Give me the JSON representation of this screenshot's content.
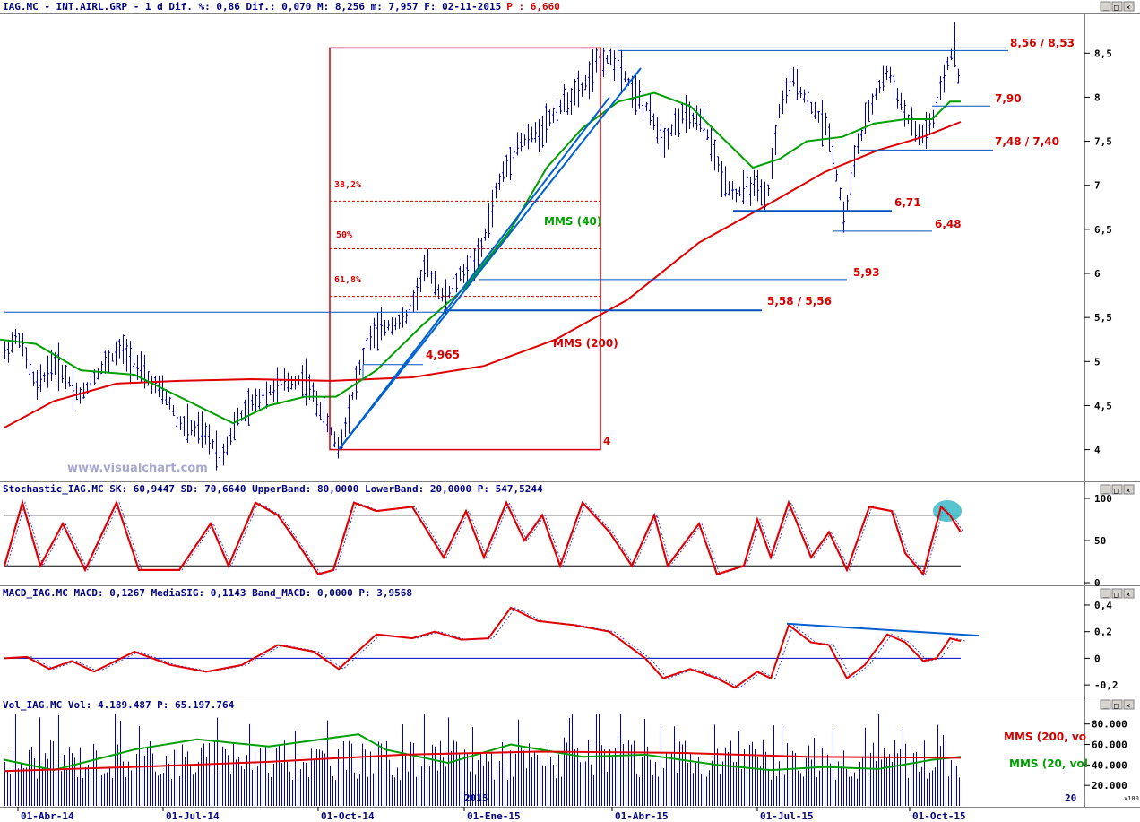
{
  "headers": {
    "price": "IAG.MC - INT.AIRL.GRP -  1 d Dif. %: 0,86 Dif.: 0,070 M: 8,256 m: 7,957 F: 02-11-2015",
    "price_p": "P : 6,660",
    "stoch": "Stochastic_IAG.MC SK: 60,9447 SD: 70,6640 UpperBand: 80,0000 LowerBand: 20,0000 P: 547,5244",
    "macd": "MACD_IAG.MC MACD: 0,1267 MediaSIG: 0,1143 Band_MACD: 0,0000 P: 3,9568",
    "vol": "Vol_IAG.MC Vol: 4.189.487 P: 65.197.764"
  },
  "watermark": "www.visualchart.com",
  "vol_year_label": "2015",
  "vol_scale_label": "x100",
  "corner_label": "20",
  "colors": {
    "bars": "#0000c0",
    "mms40": "#00a000",
    "mms200": "#e00000",
    "levels": "#0050c0",
    "stoch_sk": "#e00000",
    "macd_line": "#e00000",
    "trend": "#0060d0",
    "highlight": "#20b0c0"
  },
  "annotations": {
    "lvl_856": "8,56 / 8,53",
    "lvl_790": "7,90",
    "lvl_748": "7,48 / 7,40",
    "lvl_671": "6,71",
    "lvl_648": "6,48",
    "lvl_593": "5,93",
    "lvl_558": "5,58 / 5,56",
    "lvl_4965": "4,965",
    "lvl_4": "4",
    "fib_382": "38,2%",
    "fib_50": "50%",
    "fib_618": "61,8%",
    "mms40": "MMS (40)",
    "mms200": "MMS (200)",
    "vol_mms200": "MMS (200, vo",
    "vol_mms20": "MMS (20, vol"
  },
  "chart_data": [
    {
      "type": "line",
      "panel": "price",
      "x_ticks": [
        "01-Abr-14",
        "01-Jul-14",
        "01-Oct-14",
        "01-Ene-15",
        "01-Abr-15",
        "01-Jul-15",
        "01-Oct-15"
      ],
      "y_ticks": [
        "8,5",
        "8",
        "7,5",
        "7",
        "6,5",
        "6",
        "5,5",
        "5",
        "4,5",
        "4"
      ],
      "ylim": [
        3.65,
        8.92
      ],
      "series": [
        {
          "name": "MMS (40)"
        },
        {
          "name": "MMS (200)"
        }
      ],
      "price_path": [
        [
          0,
          5.05
        ],
        [
          20,
          5.3
        ],
        [
          40,
          4.7
        ],
        [
          60,
          5.0
        ],
        [
          90,
          4.6
        ],
        [
          110,
          4.9
        ],
        [
          135,
          5.15
        ],
        [
          160,
          4.85
        ],
        [
          185,
          4.6
        ],
        [
          200,
          4.3
        ],
        [
          225,
          4.2
        ],
        [
          248,
          3.95
        ],
        [
          265,
          4.35
        ],
        [
          290,
          4.6
        ],
        [
          315,
          4.75
        ],
        [
          340,
          4.8
        ],
        [
          365,
          4.3
        ],
        [
          378,
          4.0
        ],
        [
          395,
          4.7
        ],
        [
          410,
          5.25
        ],
        [
          430,
          5.4
        ],
        [
          455,
          5.5
        ],
        [
          475,
          6.1
        ],
        [
          495,
          5.7
        ],
        [
          515,
          6.0
        ],
        [
          535,
          6.2
        ],
        [
          555,
          7.0
        ],
        [
          575,
          7.45
        ],
        [
          600,
          7.6
        ],
        [
          625,
          7.9
        ],
        [
          650,
          8.1
        ],
        [
          670,
          8.45
        ],
        [
          690,
          8.4
        ],
        [
          705,
          8.1
        ],
        [
          720,
          7.9
        ],
        [
          740,
          7.5
        ],
        [
          760,
          7.8
        ],
        [
          785,
          7.7
        ],
        [
          805,
          7.1
        ],
        [
          820,
          6.9
        ],
        [
          840,
          7.0
        ],
        [
          855,
          6.8
        ],
        [
          870,
          7.9
        ],
        [
          885,
          8.2
        ],
        [
          905,
          7.9
        ],
        [
          925,
          7.6
        ],
        [
          942,
          6.6
        ],
        [
          955,
          7.4
        ],
        [
          975,
          8.0
        ],
        [
          990,
          8.3
        ],
        [
          1010,
          7.8
        ],
        [
          1025,
          7.55
        ],
        [
          1040,
          7.7
        ],
        [
          1055,
          8.3
        ],
        [
          1065,
          8.62
        ],
        [
          1072,
          7.95
        ]
      ],
      "mms40": [
        [
          0,
          5.25
        ],
        [
          40,
          5.2
        ],
        [
          90,
          4.9
        ],
        [
          150,
          4.85
        ],
        [
          210,
          4.55
        ],
        [
          260,
          4.3
        ],
        [
          300,
          4.5
        ],
        [
          340,
          4.6
        ],
        [
          375,
          4.6
        ],
        [
          420,
          4.9
        ],
        [
          470,
          5.4
        ],
        [
          520,
          5.85
        ],
        [
          570,
          6.5
        ],
        [
          610,
          7.2
        ],
        [
          650,
          7.65
        ],
        [
          690,
          7.95
        ],
        [
          730,
          8.05
        ],
        [
          770,
          7.9
        ],
        [
          810,
          7.5
        ],
        [
          840,
          7.2
        ],
        [
          870,
          7.3
        ],
        [
          900,
          7.5
        ],
        [
          940,
          7.55
        ],
        [
          975,
          7.7
        ],
        [
          1010,
          7.75
        ],
        [
          1040,
          7.75
        ],
        [
          1060,
          7.95
        ],
        [
          1072,
          7.95
        ]
      ],
      "mms200": [
        [
          5,
          4.25
        ],
        [
          60,
          4.55
        ],
        [
          130,
          4.75
        ],
        [
          200,
          4.78
        ],
        [
          280,
          4.8
        ],
        [
          370,
          4.78
        ],
        [
          460,
          4.82
        ],
        [
          540,
          4.95
        ],
        [
          620,
          5.25
        ],
        [
          700,
          5.7
        ],
        [
          780,
          6.35
        ],
        [
          860,
          6.8
        ],
        [
          920,
          7.15
        ],
        [
          980,
          7.4
        ],
        [
          1030,
          7.55
        ],
        [
          1072,
          7.72
        ]
      ],
      "h_levels": [
        {
          "y": 8.56,
          "x_from": 670,
          "x_to": 1125,
          "label": "8,56 / 8,53"
        },
        {
          "y": 8.53,
          "x_from": 690,
          "x_to": 1125
        },
        {
          "y": 7.9,
          "x_from": 1040,
          "x_to": 1105,
          "label": "7,90"
        },
        {
          "y": 7.48,
          "x_from": 1030,
          "x_to": 1108,
          "label": "7,48 / 7,40"
        },
        {
          "y": 7.4,
          "x_from": 960,
          "x_to": 1108
        },
        {
          "y": 6.71,
          "x_from": 818,
          "x_to": 995,
          "label": "6,71"
        },
        {
          "y": 6.48,
          "x_from": 930,
          "x_to": 1040,
          "label": "6,48"
        },
        {
          "y": 5.93,
          "x_from": 535,
          "x_to": 945,
          "label": "5,93"
        },
        {
          "y": 5.58,
          "x_from": 495,
          "x_to": 850,
          "label": "5,58 / 5,56"
        },
        {
          "y": 5.56,
          "x_from": 5,
          "x_to": 495
        },
        {
          "y": 4.965,
          "x_from": 405,
          "x_to": 472,
          "label": "4,965"
        }
      ],
      "fib_levels": [
        {
          "y": 6.82,
          "label": "38,2%"
        },
        {
          "y": 6.28,
          "label": "50%"
        },
        {
          "y": 5.74,
          "label": "61,8%"
        }
      ],
      "box": {
        "x_from": 368,
        "x_to": 670,
        "y_low": 4.0,
        "y_high": 8.56
      },
      "trend_lines": [
        {
          "from": [
            378,
            4.0
          ],
          "to": [
            715,
            8.33
          ]
        },
        {
          "from": [
            378,
            4.0
          ],
          "to": [
            680,
            8.0
          ]
        }
      ]
    },
    {
      "type": "line",
      "panel": "stochastic",
      "y_ticks": [
        "100",
        "50",
        "0"
      ],
      "ylim": [
        0,
        100
      ],
      "bands": [
        20,
        80
      ],
      "sk": [
        [
          5,
          20
        ],
        [
          25,
          95
        ],
        [
          45,
          20
        ],
        [
          70,
          70
        ],
        [
          95,
          15
        ],
        [
          130,
          95
        ],
        [
          155,
          15
        ],
        [
          200,
          15
        ],
        [
          235,
          70
        ],
        [
          255,
          20
        ],
        [
          285,
          95
        ],
        [
          310,
          80
        ],
        [
          330,
          50
        ],
        [
          355,
          10
        ],
        [
          372,
          15
        ],
        [
          395,
          95
        ],
        [
          420,
          85
        ],
        [
          460,
          90
        ],
        [
          495,
          30
        ],
        [
          520,
          85
        ],
        [
          540,
          30
        ],
        [
          565,
          95
        ],
        [
          585,
          50
        ],
        [
          605,
          80
        ],
        [
          625,
          20
        ],
        [
          650,
          95
        ],
        [
          680,
          60
        ],
        [
          705,
          20
        ],
        [
          730,
          80
        ],
        [
          745,
          20
        ],
        [
          780,
          70
        ],
        [
          800,
          10
        ],
        [
          830,
          20
        ],
        [
          845,
          75
        ],
        [
          860,
          30
        ],
        [
          880,
          95
        ],
        [
          905,
          30
        ],
        [
          925,
          60
        ],
        [
          945,
          15
        ],
        [
          970,
          90
        ],
        [
          995,
          85
        ],
        [
          1010,
          35
        ],
        [
          1030,
          10
        ],
        [
          1050,
          90
        ],
        [
          1060,
          80
        ],
        [
          1072,
          60
        ]
      ]
    },
    {
      "type": "line",
      "panel": "macd",
      "y_ticks": [
        "0,4",
        "0,2",
        "0",
        "-0,2"
      ],
      "ylim": [
        -0.28,
        0.42
      ],
      "zero_line": 0,
      "macd": [
        [
          5,
          0.0
        ],
        [
          30,
          0.01
        ],
        [
          55,
          -0.08
        ],
        [
          80,
          -0.02
        ],
        [
          105,
          -0.1
        ],
        [
          150,
          0.05
        ],
        [
          190,
          -0.05
        ],
        [
          230,
          -0.1
        ],
        [
          270,
          -0.05
        ],
        [
          310,
          0.1
        ],
        [
          350,
          0.05
        ],
        [
          378,
          -0.08
        ],
        [
          420,
          0.18
        ],
        [
          460,
          0.15
        ],
        [
          485,
          0.2
        ],
        [
          515,
          0.14
        ],
        [
          545,
          0.15
        ],
        [
          570,
          0.38
        ],
        [
          600,
          0.28
        ],
        [
          640,
          0.25
        ],
        [
          680,
          0.2
        ],
        [
          720,
          0.0
        ],
        [
          740,
          -0.15
        ],
        [
          770,
          -0.08
        ],
        [
          800,
          -0.15
        ],
        [
          820,
          -0.22
        ],
        [
          845,
          -0.1
        ],
        [
          860,
          -0.15
        ],
        [
          880,
          0.25
        ],
        [
          905,
          0.12
        ],
        [
          925,
          0.1
        ],
        [
          945,
          -0.15
        ],
        [
          965,
          -0.05
        ],
        [
          990,
          0.18
        ],
        [
          1010,
          0.12
        ],
        [
          1030,
          -0.02
        ],
        [
          1045,
          0.0
        ],
        [
          1060,
          0.15
        ],
        [
          1072,
          0.13
        ]
      ],
      "trend_line": {
        "from": [
          878,
          0.26
        ],
        "to": [
          1092,
          0.17
        ]
      }
    },
    {
      "type": "bar",
      "panel": "volume",
      "y_ticks": [
        "80.000",
        "60.000",
        "40.000",
        "20.000"
      ],
      "ylim": [
        0,
        92000
      ],
      "series": [
        {
          "name": "MMS (200, vo"
        },
        {
          "name": "MMS (20, vol"
        }
      ]
    }
  ]
}
